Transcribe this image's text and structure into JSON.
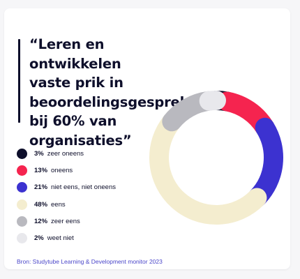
{
  "quote": {
    "lines": [
      "“Leren en ontwikkelen",
      "vaste prik in",
      "beoordelingsgesprek",
      "bij 60% van",
      "organisaties”"
    ]
  },
  "legend": [
    {
      "pct": "3%",
      "label": "zeer oneens"
    },
    {
      "pct": "13%",
      "label": "oneens"
    },
    {
      "pct": "21%",
      "label": "niet eens, niet oneens"
    },
    {
      "pct": "48%",
      "label": "eens"
    },
    {
      "pct": "12%",
      "label": "zeer eens"
    },
    {
      "pct": "2%",
      "label": "weet niet"
    }
  ],
  "source": "Bron: Studytube Learning & Development monitor 2023",
  "chart_data": {
    "type": "pie",
    "variant": "donut",
    "categories": [
      "zeer oneens",
      "oneens",
      "niet eens, niet oneens",
      "eens",
      "zeer eens",
      "weet niet"
    ],
    "values": [
      3,
      13,
      21,
      48,
      12,
      2
    ],
    "colors": [
      "#0e0f2b",
      "#f5244f",
      "#3c32d0",
      "#f4edcf",
      "#b9b9bf",
      "#e8e8ec"
    ],
    "start_angle_deg": 0
  }
}
